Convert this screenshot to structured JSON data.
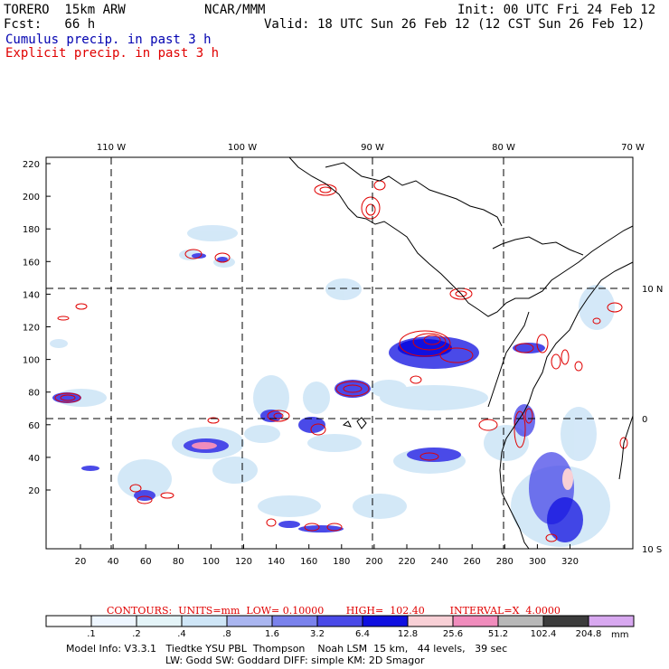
{
  "header": {
    "model": "TORERO  15km ARW",
    "center": "NCAR/MMM",
    "init": "Init: 00 UTC Fri 24 Feb 12",
    "fcst": "Fcst:   66 h",
    "valid": "Valid: 18 UTC Sun 26 Feb 12 (12 CST Sun 26 Feb 12)",
    "legend_cumulus": "Cumulus precip. in past 3 h",
    "legend_explicit": "Explicit precip. in past 3 h"
  },
  "axes": {
    "top_lon_labels": [
      "110 W",
      "100 W",
      "90 W",
      "80 W",
      "70 W"
    ],
    "right_lat_labels": [
      "10 N",
      "0",
      "10 S"
    ],
    "left_y_ticks": [
      "220",
      "200",
      "180",
      "160",
      "140",
      "120",
      "100",
      "80",
      "60",
      "40",
      "20"
    ],
    "bottom_x_ticks": [
      "20",
      "40",
      "60",
      "80",
      "100",
      "120",
      "140",
      "160",
      "180",
      "200",
      "220",
      "240",
      "260",
      "280",
      "300",
      "320"
    ]
  },
  "contour_note": "CONTOURS:  UNITS=mm  LOW= 0.10000       HIGH=  102.40        INTERVAL=X  4.0000",
  "colorbar": {
    "labels": [
      ".1",
      ".2",
      ".4",
      ".8",
      "1.6",
      "3.2",
      "6.4",
      "12.8",
      "25.6",
      "51.2",
      "102.4",
      "204.8"
    ],
    "unit": "mm",
    "colors": [
      "#ffffff",
      "#eef6ff",
      "#e4f4f8",
      "#cfe6f7",
      "#aab6f0",
      "#7a82ec",
      "#4a4ae8",
      "#1010e0",
      "#f8d0d6",
      "#f08cbc",
      "#b8b8b8",
      "#3c3c3c",
      "#d8a8f0"
    ]
  },
  "footer": {
    "line1": "Model Info: V3.3.1   Tiedtke YSU PBL  Thompson    Noah LSM  15 km,   44 levels,   39 sec",
    "line2": "LW: Godd SW: Goddard DIFF: simple KM: 2D Smagor"
  }
}
